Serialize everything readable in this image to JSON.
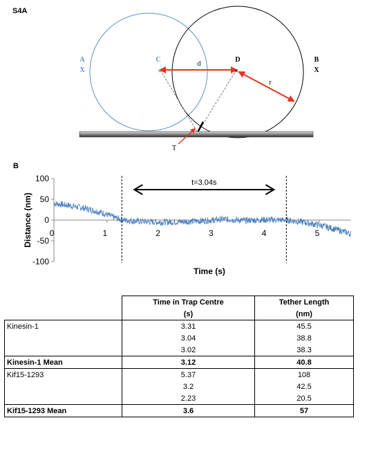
{
  "panel_a": {
    "label": "S4A",
    "point_a": {
      "letter": "A",
      "mark": "X"
    },
    "point_c": {
      "letter": "C"
    },
    "point_d": {
      "letter": "D"
    },
    "point_b": {
      "letter": "B",
      "mark": "X"
    },
    "label_d": "d",
    "label_r": "r",
    "label_t": "T",
    "colors": {
      "blue": "#5b8fc6",
      "red": "#e8321c",
      "black": "#000000"
    }
  },
  "panel_b": {
    "label": "B",
    "annotation": "t=3.04s"
  },
  "chart_data": {
    "type": "line",
    "xlabel": "Time (s)",
    "ylabel": "Distance (nm)",
    "xlim": [
      0,
      5.6
    ],
    "ylim": [
      -100,
      100
    ],
    "x_ticks": [
      0,
      1,
      2,
      3,
      4,
      5
    ],
    "y_ticks": [
      100,
      50,
      0,
      -50,
      -100
    ],
    "grid": false,
    "line_color": "#4a7fc1",
    "dashed_markers_x": [
      1.28,
      4.38
    ],
    "arrow_span_x": [
      1.28,
      4.38
    ],
    "series": [
      {
        "x": [
          0,
          0.3,
          0.6,
          0.9,
          1.1,
          1.3,
          1.6,
          2.0,
          2.4,
          2.8,
          3.2,
          3.6,
          4.0,
          4.4,
          4.7,
          5.0,
          5.3,
          5.6
        ],
        "values": [
          40,
          35,
          28,
          18,
          8,
          0,
          -3,
          -5,
          -4,
          -2,
          2,
          -1,
          1,
          0,
          -5,
          -12,
          -22,
          -33
        ]
      }
    ]
  },
  "table": {
    "headers": [
      "",
      "Time in Trap Centre",
      "Tether Length"
    ],
    "units": [
      "",
      "(s)",
      "(nm)"
    ],
    "rows": [
      {
        "label": "Kinesin-1",
        "time": "3.31",
        "length": "45.5",
        "bold": false
      },
      {
        "label": "",
        "time": "3.04",
        "length": "38.8",
        "bold": false
      },
      {
        "label": "",
        "time": "3.02",
        "length": "38.3",
        "bold": false
      },
      {
        "label": "Kinesin-1 Mean",
        "time": "3.12",
        "length": "40.8",
        "bold": true
      },
      {
        "label": "Kif15-1293",
        "time": "5.37",
        "length": "108",
        "bold": false
      },
      {
        "label": "",
        "time": "3.2",
        "length": "42.5",
        "bold": false
      },
      {
        "label": "",
        "time": "2.23",
        "length": "20.5",
        "bold": false
      },
      {
        "label": "Kif15-1293 Mean",
        "time": "3.6",
        "length": "57",
        "bold": true
      }
    ]
  }
}
